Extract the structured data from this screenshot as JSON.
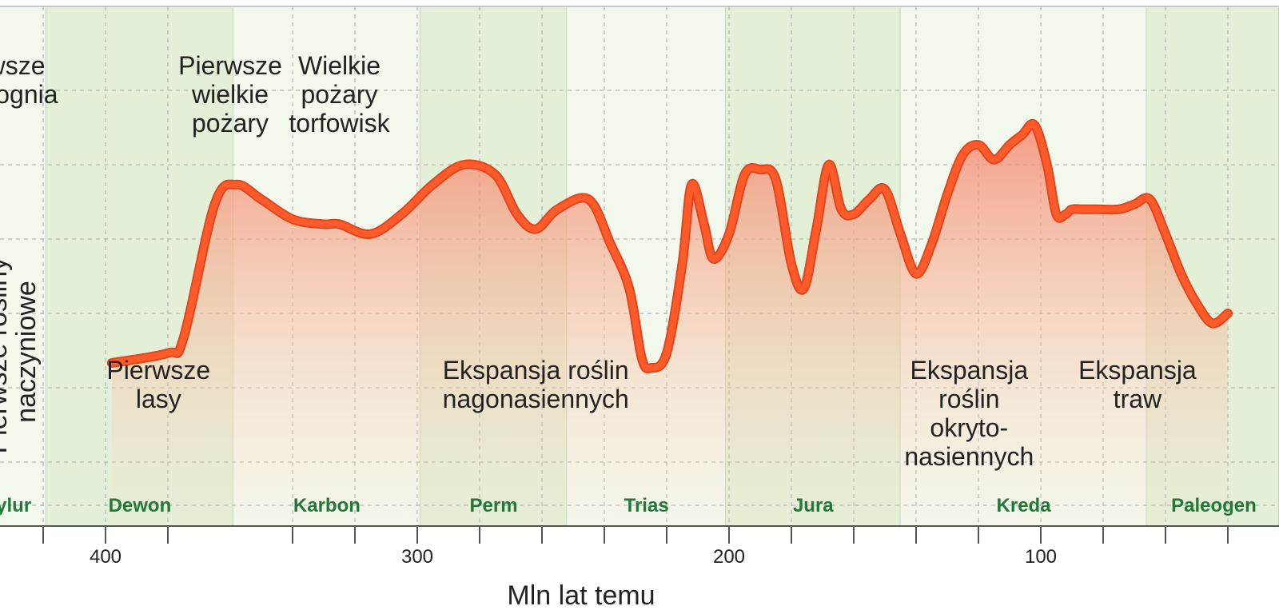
{
  "chart_data": {
    "type": "area",
    "title": "",
    "xlabel": "Mln lat temu",
    "ylabel": "Pierwsze rośliny naczyniowe",
    "x_reversed": true,
    "xlim": [
      470,
      0
    ],
    "ylim": [
      0,
      100
    ],
    "grid": true,
    "x_ticks": [
      400,
      300,
      200,
      100
    ],
    "x_minor_ticks": [
      420,
      380,
      340,
      320,
      280,
      260,
      240,
      220,
      180,
      160,
      140,
      120,
      80,
      60,
      40
    ],
    "periods": [
      {
        "name": "Sylur",
        "start": 444,
        "end": 419,
        "shade": "light"
      },
      {
        "name": "Dewon",
        "start": 419,
        "end": 359,
        "shade": "dark"
      },
      {
        "name": "Karbon",
        "start": 359,
        "end": 299,
        "shade": "light"
      },
      {
        "name": "Perm",
        "start": 299,
        "end": 252,
        "shade": "dark"
      },
      {
        "name": "Trias",
        "start": 252,
        "end": 201,
        "shade": "light"
      },
      {
        "name": "Jura",
        "start": 201,
        "end": 145,
        "shade": "dark"
      },
      {
        "name": "Kreda",
        "start": 145,
        "end": 66,
        "shade": "light"
      },
      {
        "name": "Paleogen",
        "start": 66,
        "end": 23,
        "shade": "dark"
      }
    ],
    "series": [
      {
        "name": "",
        "color": "#ff5a2a",
        "x": [
          398,
          380,
          375,
          365,
          358,
          350,
          340,
          330,
          325,
          315,
          305,
          295,
          285,
          275,
          268,
          262,
          255,
          245,
          238,
          232,
          228,
          225,
          220,
          215,
          212,
          208,
          205,
          200,
          195,
          190,
          185,
          180,
          176,
          172,
          168,
          164,
          160,
          155,
          150,
          145,
          140,
          135,
          130,
          125,
          120,
          115,
          110,
          106,
          102,
          98,
          95,
          92,
          90,
          86,
          82,
          75,
          70,
          65,
          60,
          55,
          50,
          45,
          40
        ],
        "y": [
          30,
          32,
          35,
          62,
          66,
          63,
          59,
          58,
          58,
          56,
          60,
          66,
          70,
          68,
          60,
          57,
          61,
          63,
          54,
          45,
          31,
          29,
          32,
          50,
          66,
          58,
          51,
          56,
          68,
          69,
          67,
          50,
          45,
          57,
          70,
          61,
          60,
          63,
          65,
          56,
          48,
          54,
          64,
          72,
          74,
          71,
          74,
          76,
          78,
          70,
          60,
          60,
          61,
          61,
          61,
          61,
          62,
          63,
          56,
          48,
          42,
          38,
          40
        ]
      }
    ],
    "annotations_top": [
      {
        "text": [
          "Pierwsze",
          "ślady ognia"
        ],
        "x": 436
      },
      {
        "text": [
          "Pierwsze",
          "wielkie",
          "pożary"
        ],
        "x": 360
      },
      {
        "text": [
          "Wielkie",
          "pożary",
          "torfowisk"
        ],
        "x": 325
      }
    ],
    "annotations_bottom": [
      {
        "text": [
          "Pierwsze",
          "lasy"
        ],
        "x": 383
      },
      {
        "text": [
          "Ekspansja roślin",
          "nagonasiennych"
        ],
        "x": 262
      },
      {
        "text": [
          "Ekspansja",
          "roślin",
          "okryto-",
          "nasiennych"
        ],
        "x": 123
      },
      {
        "text": [
          "Ekspansja",
          "traw"
        ],
        "x": 69
      }
    ]
  }
}
